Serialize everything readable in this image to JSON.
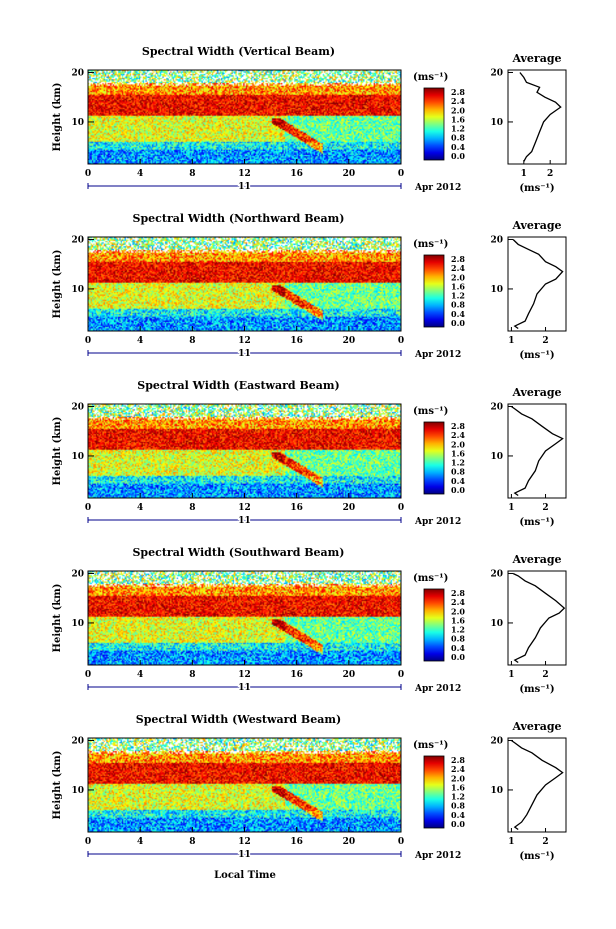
{
  "chart_data": [
    {
      "type": "heatmap",
      "title": "Spectral Width (Vertical Beam)",
      "ylabel": "Height (km)",
      "xticks": [
        "0",
        "4",
        "8",
        "12",
        "16",
        "20",
        "0"
      ],
      "yticks": [
        "20",
        "10"
      ],
      "date_day": "11",
      "date_label": "Apr 2012",
      "xlim": [
        0,
        24
      ],
      "ylim": [
        1.5,
        20.5
      ],
      "colorbar_unit": "(ms⁻¹)",
      "colorbar_ticks": [
        "2.8",
        "2.4",
        "2.0",
        "1.6",
        "1.2",
        "0.8",
        "0.4",
        "0.0"
      ],
      "colorbar_range": [
        0,
        3.0
      ],
      "profile": {
        "title": "Average",
        "xlabel": "(ms⁻¹)",
        "xticks": [
          "1",
          "2"
        ],
        "yticks": [
          "20",
          "10"
        ],
        "xlim": [
          0.4,
          2.6
        ],
        "ylim": [
          1.5,
          20.5
        ],
        "points": [
          [
            1.0,
            2.0
          ],
          [
            1.1,
            3.0
          ],
          [
            1.3,
            4.0
          ],
          [
            1.45,
            6.0
          ],
          [
            1.6,
            8.0
          ],
          [
            1.75,
            10.0
          ],
          [
            2.0,
            11.5
          ],
          [
            2.4,
            13.0
          ],
          [
            2.2,
            14.0
          ],
          [
            1.8,
            15.0
          ],
          [
            1.5,
            16.0
          ],
          [
            1.6,
            17.0
          ],
          [
            1.1,
            18.0
          ],
          [
            1.0,
            19.0
          ],
          [
            0.85,
            20.0
          ]
        ]
      }
    },
    {
      "type": "heatmap",
      "title": "Spectral Width (Northward Beam)",
      "ylabel": "Height (km)",
      "xticks": [
        "0",
        "4",
        "8",
        "12",
        "16",
        "20",
        "0"
      ],
      "yticks": [
        "20",
        "10"
      ],
      "date_day": "11",
      "date_label": "Apr 2012",
      "xlim": [
        0,
        24
      ],
      "ylim": [
        1.5,
        20.5
      ],
      "colorbar_unit": "(ms⁻¹)",
      "colorbar_ticks": [
        "2.8",
        "2.4",
        "2.0",
        "1.6",
        "1.2",
        "0.8",
        "0.4",
        "0.0"
      ],
      "colorbar_range": [
        0,
        3.0
      ],
      "profile": {
        "title": "Average",
        "xlabel": "(ms⁻¹)",
        "xticks": [
          "1",
          "2"
        ],
        "yticks": [
          "20",
          "10"
        ],
        "xlim": [
          0.9,
          2.6
        ],
        "ylim": [
          1.5,
          20.5
        ],
        "points": [
          [
            1.2,
            2.0
          ],
          [
            1.1,
            2.5
          ],
          [
            1.4,
            3.5
          ],
          [
            1.5,
            5.0
          ],
          [
            1.65,
            7.0
          ],
          [
            1.75,
            9.0
          ],
          [
            2.0,
            11.0
          ],
          [
            2.3,
            12.0
          ],
          [
            2.5,
            13.5
          ],
          [
            2.3,
            14.5
          ],
          [
            2.0,
            15.5
          ],
          [
            1.8,
            17.0
          ],
          [
            1.5,
            18.0
          ],
          [
            1.2,
            19.0
          ],
          [
            1.05,
            20.0
          ]
        ]
      }
    },
    {
      "type": "heatmap",
      "title": "Spectral Width (Eastward Beam)",
      "ylabel": "Height (km)",
      "xticks": [
        "0",
        "4",
        "8",
        "12",
        "16",
        "20",
        "0"
      ],
      "yticks": [
        "20",
        "10"
      ],
      "date_day": "11",
      "date_label": "Apr 2012",
      "xlim": [
        0,
        24
      ],
      "ylim": [
        1.5,
        20.5
      ],
      "colorbar_unit": "(ms⁻¹)",
      "colorbar_ticks": [
        "2.8",
        "2.4",
        "2.0",
        "1.6",
        "1.2",
        "0.8",
        "0.4",
        "0.0"
      ],
      "colorbar_range": [
        0,
        3.0
      ],
      "profile": {
        "title": "Average",
        "xlabel": "(ms⁻¹)",
        "xticks": [
          "1",
          "2"
        ],
        "yticks": [
          "20",
          "10"
        ],
        "xlim": [
          0.9,
          2.6
        ],
        "ylim": [
          1.5,
          20.5
        ],
        "points": [
          [
            1.2,
            2.0
          ],
          [
            1.1,
            2.5
          ],
          [
            1.4,
            3.5
          ],
          [
            1.5,
            5.0
          ],
          [
            1.7,
            7.0
          ],
          [
            1.8,
            9.0
          ],
          [
            2.0,
            11.0
          ],
          [
            2.3,
            12.5
          ],
          [
            2.5,
            13.5
          ],
          [
            2.2,
            14.5
          ],
          [
            1.9,
            16.0
          ],
          [
            1.6,
            17.5
          ],
          [
            1.3,
            18.5
          ],
          [
            1.1,
            19.5
          ],
          [
            1.0,
            20.0
          ]
        ]
      }
    },
    {
      "type": "heatmap",
      "title": "Spectral Width (Southward Beam)",
      "ylabel": "Height (km)",
      "xticks": [
        "0",
        "4",
        "8",
        "12",
        "16",
        "20",
        "0"
      ],
      "yticks": [
        "20",
        "10"
      ],
      "date_day": "11",
      "date_label": "Apr 2012",
      "xlim": [
        0,
        24
      ],
      "ylim": [
        1.5,
        20.5
      ],
      "colorbar_unit": "(ms⁻¹)",
      "colorbar_ticks": [
        "2.8",
        "2.4",
        "2.0",
        "1.6",
        "1.2",
        "0.8",
        "0.4",
        "0.0"
      ],
      "colorbar_range": [
        0,
        3.0
      ],
      "profile": {
        "title": "Average",
        "xlabel": "(ms⁻¹)",
        "xticks": [
          "1",
          "2"
        ],
        "yticks": [
          "20",
          "10"
        ],
        "xlim": [
          0.9,
          2.6
        ],
        "ylim": [
          1.5,
          20.5
        ],
        "points": [
          [
            1.2,
            2.0
          ],
          [
            1.1,
            2.5
          ],
          [
            1.4,
            3.5
          ],
          [
            1.5,
            5.0
          ],
          [
            1.7,
            7.0
          ],
          [
            1.85,
            9.0
          ],
          [
            2.1,
            11.0
          ],
          [
            2.4,
            12.0
          ],
          [
            2.55,
            13.0
          ],
          [
            2.3,
            14.5
          ],
          [
            2.0,
            16.0
          ],
          [
            1.7,
            17.5
          ],
          [
            1.4,
            18.5
          ],
          [
            1.2,
            19.5
          ],
          [
            1.05,
            20.0
          ]
        ]
      }
    },
    {
      "type": "heatmap",
      "title": "Spectral Width (Westward Beam)",
      "ylabel": "Height (km)",
      "xticks": [
        "0",
        "4",
        "8",
        "12",
        "16",
        "20",
        "0"
      ],
      "yticks": [
        "20",
        "10"
      ],
      "date_day": "11",
      "date_label": "Apr 2012",
      "xlim": [
        0,
        24
      ],
      "ylim": [
        1.5,
        20.5
      ],
      "colorbar_unit": "(ms⁻¹)",
      "colorbar_ticks": [
        "2.8",
        "2.4",
        "2.0",
        "1.6",
        "1.2",
        "0.8",
        "0.4",
        "0.0"
      ],
      "colorbar_range": [
        0,
        3.0
      ],
      "profile": {
        "title": "Average",
        "xlabel": "(ms⁻¹)",
        "xticks": [
          "1",
          "2"
        ],
        "yticks": [
          "20",
          "10"
        ],
        "xlim": [
          0.9,
          2.6
        ],
        "ylim": [
          1.5,
          20.5
        ],
        "points": [
          [
            1.2,
            2.0
          ],
          [
            1.1,
            2.5
          ],
          [
            1.3,
            3.5
          ],
          [
            1.45,
            5.0
          ],
          [
            1.6,
            7.0
          ],
          [
            1.75,
            9.0
          ],
          [
            2.0,
            11.0
          ],
          [
            2.3,
            12.5
          ],
          [
            2.5,
            13.5
          ],
          [
            2.3,
            14.5
          ],
          [
            1.9,
            16.0
          ],
          [
            1.6,
            17.5
          ],
          [
            1.3,
            18.5
          ],
          [
            1.1,
            19.5
          ],
          [
            1.0,
            20.0
          ]
        ]
      }
    }
  ],
  "footer": {
    "xlabel": "Local Time"
  }
}
